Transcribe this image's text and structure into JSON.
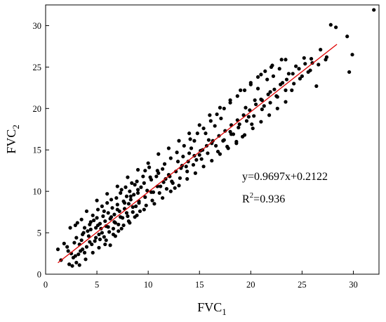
{
  "chart_data": {
    "type": "scatter",
    "title": "",
    "xlabel": {
      "base": "FVC",
      "sub": "1"
    },
    "ylabel": {
      "base": "FVC",
      "sub": "2"
    },
    "xlim": [
      0,
      32.5
    ],
    "ylim": [
      0,
      32.5
    ],
    "x_ticks": [
      0,
      5,
      10,
      15,
      20,
      25,
      30
    ],
    "y_ticks": [
      0,
      5,
      10,
      15,
      20,
      25,
      30
    ],
    "grid": false,
    "legend": "none",
    "point_color": "#000000",
    "fit_line_color": "#e00000",
    "fit_line": {
      "slope": 0.9697,
      "intercept": 0.2122,
      "x_range": [
        1.2,
        28.4
      ]
    },
    "annotations": {
      "equation": "y=0.9697x+0.2122",
      "r2_base": "R",
      "r2_sup": "2",
      "r2_rest": "=0.936"
    },
    "points": [
      [
        1.2,
        3.0
      ],
      [
        1.5,
        1.7
      ],
      [
        1.8,
        3.7
      ],
      [
        2.1,
        3.3
      ],
      [
        2.3,
        1.2
      ],
      [
        2.6,
        1.0
      ],
      [
        2.5,
        2.5
      ],
      [
        2.8,
        3.8
      ],
      [
        2.9,
        5.9
      ],
      [
        2.4,
        5.6
      ],
      [
        3.0,
        1.4
      ],
      [
        3.2,
        2.4
      ],
      [
        3.3,
        1.1
      ],
      [
        3.4,
        2.8
      ],
      [
        3.5,
        4.1
      ],
      [
        3.6,
        4.8
      ],
      [
        3.7,
        5.0
      ],
      [
        3.8,
        2.6
      ],
      [
        3.9,
        1.8
      ],
      [
        3.1,
        6.2
      ],
      [
        3.5,
        6.6
      ],
      [
        4.0,
        3.3
      ],
      [
        4.1,
        5.2
      ],
      [
        4.2,
        4.6
      ],
      [
        4.3,
        6.0
      ],
      [
        4.4,
        5.4
      ],
      [
        4.5,
        3.6
      ],
      [
        4.6,
        7.1
      ],
      [
        4.7,
        6.5
      ],
      [
        4.8,
        4.0
      ],
      [
        4.9,
        5.6
      ],
      [
        5.0,
        6.8
      ],
      [
        5.1,
        7.8
      ],
      [
        5.2,
        4.8
      ],
      [
        5.3,
        6.1
      ],
      [
        5.4,
        5.5
      ],
      [
        5.5,
        8.2
      ],
      [
        5.6,
        7.0
      ],
      [
        5.7,
        4.5
      ],
      [
        5.8,
        6.4
      ],
      [
        5.9,
        5.8
      ],
      [
        6.0,
        8.6
      ],
      [
        6.1,
        7.4
      ],
      [
        6.2,
        5.1
      ],
      [
        6.3,
        6.7
      ],
      [
        6.4,
        9.0
      ],
      [
        6.5,
        8.0
      ],
      [
        6.6,
        5.5
      ],
      [
        6.7,
        7.2
      ],
      [
        6.8,
        6.2
      ],
      [
        6.9,
        9.2
      ],
      [
        7.0,
        8.4
      ],
      [
        7.1,
        6.0
      ],
      [
        7.2,
        7.6
      ],
      [
        7.3,
        9.8
      ],
      [
        7.4,
        10.2
      ],
      [
        7.5,
        6.8
      ],
      [
        7.6,
        8.8
      ],
      [
        7.7,
        7.9
      ],
      [
        7.8,
        10.5
      ],
      [
        7.9,
        9.4
      ],
      [
        8.0,
        7.0
      ],
      [
        8.1,
        8.5
      ],
      [
        8.2,
        10.0
      ],
      [
        8.3,
        9.0
      ],
      [
        8.4,
        11.0
      ],
      [
        8.5,
        7.5
      ],
      [
        8.6,
        9.6
      ],
      [
        8.7,
        10.8
      ],
      [
        8.8,
        8.2
      ],
      [
        8.9,
        11.2
      ],
      [
        9.0,
        9.8
      ],
      [
        9.1,
        8.8
      ],
      [
        9.3,
        10.5
      ],
      [
        9.5,
        11.8
      ],
      [
        9.7,
        12.5
      ],
      [
        9.9,
        10.1
      ],
      [
        10.1,
        12.9
      ],
      [
        10.3,
        11.4
      ],
      [
        10.5,
        9.9
      ],
      [
        10.8,
        11.8
      ],
      [
        11.0,
        12.2
      ],
      [
        11.2,
        10.6
      ],
      [
        11.4,
        12.7
      ],
      [
        11.7,
        11.5
      ],
      [
        12.0,
        12.0
      ],
      [
        12.3,
        11.2
      ],
      [
        12.6,
        10.4
      ],
      [
        12.9,
        13.6
      ],
      [
        13.2,
        12.8
      ],
      [
        13.4,
        14.2
      ],
      [
        13.7,
        13.0
      ],
      [
        14.0,
        14.6
      ],
      [
        14.2,
        15.2
      ],
      [
        14.5,
        16.1
      ],
      [
        14.7,
        13.8
      ],
      [
        15.0,
        14.4
      ],
      [
        15.3,
        15.0
      ],
      [
        15.6,
        17.0
      ],
      [
        15.9,
        16.2
      ],
      [
        16.2,
        15.8
      ],
      [
        16.5,
        17.9
      ],
      [
        16.8,
        14.8
      ],
      [
        17.1,
        18.8
      ],
      [
        17.4,
        16.2
      ],
      [
        17.7,
        15.4
      ],
      [
        18.0,
        17.2
      ],
      [
        18.3,
        16.9
      ],
      [
        18.6,
        15.8
      ],
      [
        18.9,
        18.1
      ],
      [
        19.2,
        16.6
      ],
      [
        19.5,
        20.1
      ],
      [
        19.8,
        19.0
      ],
      [
        20.1,
        18.1
      ],
      [
        20.4,
        21.0
      ],
      [
        20.7,
        22.4
      ],
      [
        21.0,
        21.1
      ],
      [
        21.3,
        20.3
      ],
      [
        21.6,
        23.5
      ],
      [
        21.9,
        22.0
      ],
      [
        22.2,
        23.9
      ],
      [
        22.5,
        21.5
      ],
      [
        22.8,
        24.8
      ],
      [
        23.1,
        23.1
      ],
      [
        23.4,
        25.9
      ],
      [
        23.7,
        24.2
      ],
      [
        24.0,
        22.2
      ],
      [
        24.4,
        25.1
      ],
      [
        24.8,
        23.6
      ],
      [
        25.2,
        26.1
      ],
      [
        25.6,
        24.4
      ],
      [
        26.0,
        25.5
      ],
      [
        26.4,
        22.7
      ],
      [
        26.8,
        27.1
      ],
      [
        27.3,
        25.9
      ],
      [
        27.8,
        30.1
      ],
      [
        28.3,
        29.8
      ],
      [
        29.4,
        28.7
      ],
      [
        29.6,
        24.4
      ],
      [
        29.9,
        26.5
      ],
      [
        32.0,
        31.9
      ],
      [
        2.7,
        2.0
      ],
      [
        3.3,
        3.6
      ],
      [
        4.6,
        2.6
      ],
      [
        5.2,
        3.2
      ],
      [
        5.9,
        4.1
      ],
      [
        6.3,
        3.5
      ],
      [
        6.8,
        4.6
      ],
      [
        7.1,
        5.2
      ],
      [
        7.6,
        5.9
      ],
      [
        8.1,
        6.4
      ],
      [
        8.7,
        6.9
      ],
      [
        9.2,
        7.6
      ],
      [
        9.8,
        8.3
      ],
      [
        10.4,
        8.9
      ],
      [
        11.1,
        9.8
      ],
      [
        11.8,
        10.3
      ],
      [
        12.4,
        11.0
      ],
      [
        13.1,
        11.6
      ],
      [
        13.8,
        12.4
      ],
      [
        14.4,
        13.2
      ],
      [
        15.2,
        13.9
      ],
      [
        15.8,
        14.6
      ],
      [
        16.6,
        15.5
      ],
      [
        17.3,
        16.1
      ],
      [
        18.1,
        16.9
      ],
      [
        18.8,
        17.7
      ],
      [
        19.6,
        18.5
      ],
      [
        20.3,
        19.1
      ],
      [
        21.1,
        19.9
      ],
      [
        21.9,
        20.7
      ],
      [
        22.6,
        21.4
      ],
      [
        23.4,
        22.2
      ],
      [
        24.2,
        23.0
      ],
      [
        25.0,
        23.9
      ],
      [
        25.8,
        24.6
      ],
      [
        26.6,
        25.3
      ],
      [
        27.4,
        26.2
      ],
      [
        4.0,
        7.6
      ],
      [
        5.0,
        8.9
      ],
      [
        6.0,
        9.7
      ],
      [
        7.0,
        10.6
      ],
      [
        8.0,
        11.7
      ],
      [
        9.0,
        12.6
      ],
      [
        10.0,
        13.4
      ],
      [
        11.0,
        14.5
      ],
      [
        12.0,
        15.2
      ],
      [
        13.0,
        16.1
      ],
      [
        14.0,
        17.0
      ],
      [
        15.0,
        18.0
      ],
      [
        16.0,
        19.2
      ],
      [
        17.0,
        20.1
      ],
      [
        18.0,
        21.0
      ],
      [
        19.0,
        22.2
      ],
      [
        20.0,
        23.1
      ],
      [
        21.0,
        24.1
      ],
      [
        22.0,
        25.0
      ],
      [
        23.0,
        25.9
      ],
      [
        2.2,
        2.8
      ],
      [
        2.9,
        2.2
      ],
      [
        3.6,
        3.0
      ],
      [
        4.3,
        3.9
      ],
      [
        4.9,
        4.4
      ],
      [
        5.5,
        5.0
      ],
      [
        6.1,
        5.7
      ],
      [
        6.7,
        6.3
      ],
      [
        7.3,
        6.9
      ],
      [
        7.9,
        7.4
      ],
      [
        8.5,
        8.1
      ],
      [
        9.1,
        8.6
      ],
      [
        9.7,
        9.3
      ],
      [
        10.3,
        9.9
      ],
      [
        10.9,
        10.6
      ],
      [
        11.5,
        11.1
      ],
      [
        12.1,
        11.8
      ],
      [
        12.7,
        12.4
      ],
      [
        13.3,
        13.1
      ],
      [
        13.9,
        13.6
      ],
      [
        14.5,
        14.3
      ],
      [
        15.1,
        14.9
      ],
      [
        15.7,
        15.5
      ],
      [
        16.3,
        16.1
      ],
      [
        16.9,
        16.7
      ],
      [
        17.5,
        17.3
      ],
      [
        18.1,
        18.0
      ],
      [
        18.7,
        18.6
      ],
      [
        19.3,
        19.2
      ],
      [
        19.9,
        19.8
      ],
      [
        20.5,
        20.5
      ],
      [
        21.1,
        21.0
      ],
      [
        21.7,
        21.7
      ],
      [
        22.3,
        22.3
      ],
      [
        22.9,
        22.9
      ],
      [
        23.5,
        23.5
      ],
      [
        24.1,
        24.2
      ],
      [
        24.7,
        24.8
      ],
      [
        25.3,
        25.4
      ],
      [
        25.9,
        26.0
      ],
      [
        3.0,
        4.4
      ],
      [
        3.8,
        5.6
      ],
      [
        4.4,
        6.3
      ],
      [
        5.1,
        5.9
      ],
      [
        5.7,
        7.6
      ],
      [
        6.4,
        6.9
      ],
      [
        7.0,
        7.8
      ],
      [
        7.7,
        8.6
      ],
      [
        8.3,
        9.4
      ],
      [
        9.0,
        10.2
      ],
      [
        9.6,
        11.0
      ],
      [
        10.2,
        11.7
      ],
      [
        10.9,
        12.5
      ],
      [
        11.6,
        13.3
      ],
      [
        12.2,
        14.0
      ],
      [
        12.8,
        14.7
      ],
      [
        13.5,
        15.5
      ],
      [
        14.1,
        16.3
      ],
      [
        14.8,
        17.0
      ],
      [
        15.4,
        17.6
      ],
      [
        16.1,
        18.5
      ],
      [
        16.7,
        19.3
      ],
      [
        17.4,
        20.0
      ],
      [
        18.0,
        20.7
      ],
      [
        18.7,
        21.5
      ],
      [
        19.4,
        22.2
      ],
      [
        20.0,
        22.9
      ],
      [
        20.7,
        23.8
      ],
      [
        21.4,
        24.5
      ],
      [
        22.1,
        25.2
      ],
      [
        5.3,
        4.2
      ],
      [
        5.8,
        3.6
      ],
      [
        6.6,
        4.8
      ],
      [
        7.4,
        5.5
      ],
      [
        8.2,
        6.2
      ],
      [
        8.9,
        7.1
      ],
      [
        9.6,
        7.8
      ],
      [
        10.6,
        8.5
      ],
      [
        11.4,
        9.2
      ],
      [
        12.2,
        10.0
      ],
      [
        13.0,
        10.7
      ],
      [
        13.8,
        11.5
      ],
      [
        14.6,
        12.2
      ],
      [
        15.4,
        13.0
      ],
      [
        16.2,
        13.7
      ],
      [
        17.0,
        14.5
      ],
      [
        17.8,
        15.2
      ],
      [
        18.6,
        16.0
      ],
      [
        19.4,
        16.8
      ],
      [
        20.2,
        17.6
      ],
      [
        21.0,
        18.4
      ],
      [
        21.8,
        19.2
      ],
      [
        22.6,
        20.0
      ],
      [
        23.4,
        20.8
      ]
    ]
  }
}
